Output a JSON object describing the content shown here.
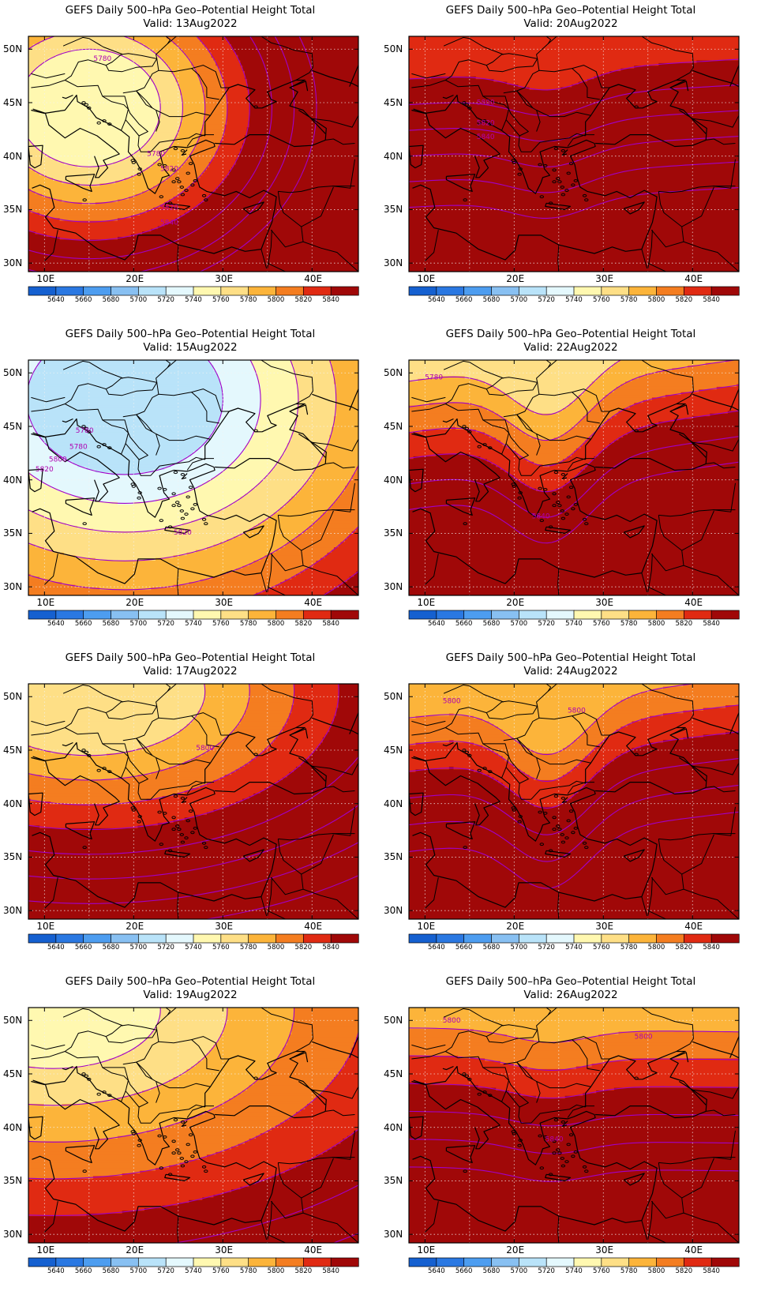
{
  "maps": [
    {
      "id": "13Aug",
      "title": "GEFS Daily 500–hPa Geo–Potential Height Total",
      "valid": "Valid:  13Aug2022",
      "base": 5760,
      "cx": 15,
      "cy": 44.5,
      "rx": 8,
      "ry": 5.5,
      "gap": 3.2,
      "contour_labels": [
        {
          "text": "5780",
          "lon": 16.5,
          "lat": 48.9
        },
        {
          "text": "5780",
          "lon": 22.5,
          "lat": 40.0
        },
        {
          "text": "5820",
          "lon": 24.0,
          "lat": 38.6
        },
        {
          "text": "5820",
          "lon": 24.0,
          "lat": 35.0
        },
        {
          "text": "5840",
          "lon": 24.0,
          "lat": 33.6
        }
      ]
    },
    {
      "id": "20Aug",
      "title": "GEFS Daily 500–hPa Geo–Potential Height Total",
      "valid": "Valid:  20Aug2022",
      "base": 5840,
      "lat0": 47.2,
      "slope": 0.05,
      "amp": 1.8,
      "gap": 2.4,
      "contour_labels": [
        {
          "text": "5800",
          "lon": 16.8,
          "lat": 44.8
        },
        {
          "text": "5820",
          "lon": 16.8,
          "lat": 42.9
        },
        {
          "text": "5840",
          "lon": 16.8,
          "lat": 41.6
        }
      ]
    },
    {
      "id": "15Aug",
      "title": "GEFS Daily 500–hPa Geo–Potential Height Total",
      "valid": "Valid:  15Aug2022",
      "base": 5720,
      "cx": 19,
      "cy": 47.5,
      "rx": 11,
      "ry": 7,
      "gap": 2.6,
      "contour_labels": [
        {
          "text": "5780",
          "lon": 13.8,
          "lat": 42.9
        },
        {
          "text": "5780",
          "lon": 14.5,
          "lat": 44.4
        },
        {
          "text": "5800",
          "lon": 11.5,
          "lat": 41.7
        },
        {
          "text": "5820",
          "lon": 10.0,
          "lat": 40.8
        },
        {
          "text": "5820",
          "lon": 25.5,
          "lat": 34.9
        }
      ]
    },
    {
      "id": "22Aug",
      "title": "GEFS Daily 500–hPa Geo–Potential Height Total",
      "valid": "Valid:  22Aug2022",
      "base": 5780,
      "lat0": 49.2,
      "slope": 0.12,
      "amp": 5.0,
      "gap": 2.4,
      "contour_labels": [
        {
          "text": "5780",
          "lon": 11.0,
          "lat": 49.4
        },
        {
          "text": "5840",
          "lon": 23.0,
          "lat": 36.4
        }
      ]
    },
    {
      "id": "17Aug",
      "title": "GEFS Daily 500–hPa Geo–Potential Height Total",
      "valid": "Valid:  17Aug2022",
      "base": 5780,
      "cx": 15,
      "cy": 50.5,
      "rx": 13,
      "ry": 6,
      "gap": 2.6,
      "contour_labels": [
        {
          "text": "5800",
          "lon": 28.0,
          "lat": 45.0
        }
      ]
    },
    {
      "id": "24Aug",
      "title": "GEFS Daily 500–hPa Geo–Potential Height Total",
      "valid": "Valid:  24Aug2022",
      "base": 5800,
      "lat0": 48.0,
      "slope": 0.1,
      "amp": 5.0,
      "gap": 2.5,
      "contour_labels": [
        {
          "text": "5800",
          "lon": 13.0,
          "lat": 49.4
        },
        {
          "text": "5800",
          "lon": 27.0,
          "lat": 48.5
        }
      ]
    },
    {
      "id": "19Aug",
      "title": "GEFS Daily 500–hPa Geo–Potential Height Total",
      "valid": "Valid:  19Aug2022",
      "base": 5760,
      "cx": 11,
      "cy": 51,
      "rx": 12,
      "ry": 5.5,
      "gap": 1.6,
      "contour_labels": []
    },
    {
      "id": "26Aug",
      "title": "GEFS Daily 500–hPa Geo–Potential Height Total",
      "valid": "Valid:  26Aug2022",
      "base": 5800,
      "lat0": 49.3,
      "slope": -0.01,
      "amp": 1.2,
      "gap": 2.6,
      "contour_labels": [
        {
          "text": "5800",
          "lon": 13.0,
          "lat": 49.8
        },
        {
          "text": "5800",
          "lon": 34.5,
          "lat": 48.3
        },
        {
          "text": "5840",
          "lon": 24.5,
          "lat": 38.7
        }
      ]
    }
  ],
  "lon_ticks": [
    "10E",
    "20E",
    "30E",
    "40E"
  ],
  "lat_ticks": [
    "30N",
    "35N",
    "40N",
    "45N",
    "50N"
  ],
  "colorbar": {
    "levels": [
      "5640",
      "5660",
      "5680",
      "5700",
      "5720",
      "5740",
      "5760",
      "5780",
      "5800",
      "5820",
      "5840"
    ],
    "colors": [
      "#1560d0",
      "#2a78e2",
      "#4d9df0",
      "#88c0f2",
      "#b9e3f9",
      "#e4f8fd",
      "#fff8b0",
      "#fedf86",
      "#fcb43a",
      "#f47d20",
      "#e02a12",
      "#a00808"
    ]
  },
  "contour_color": "#a000c8"
}
